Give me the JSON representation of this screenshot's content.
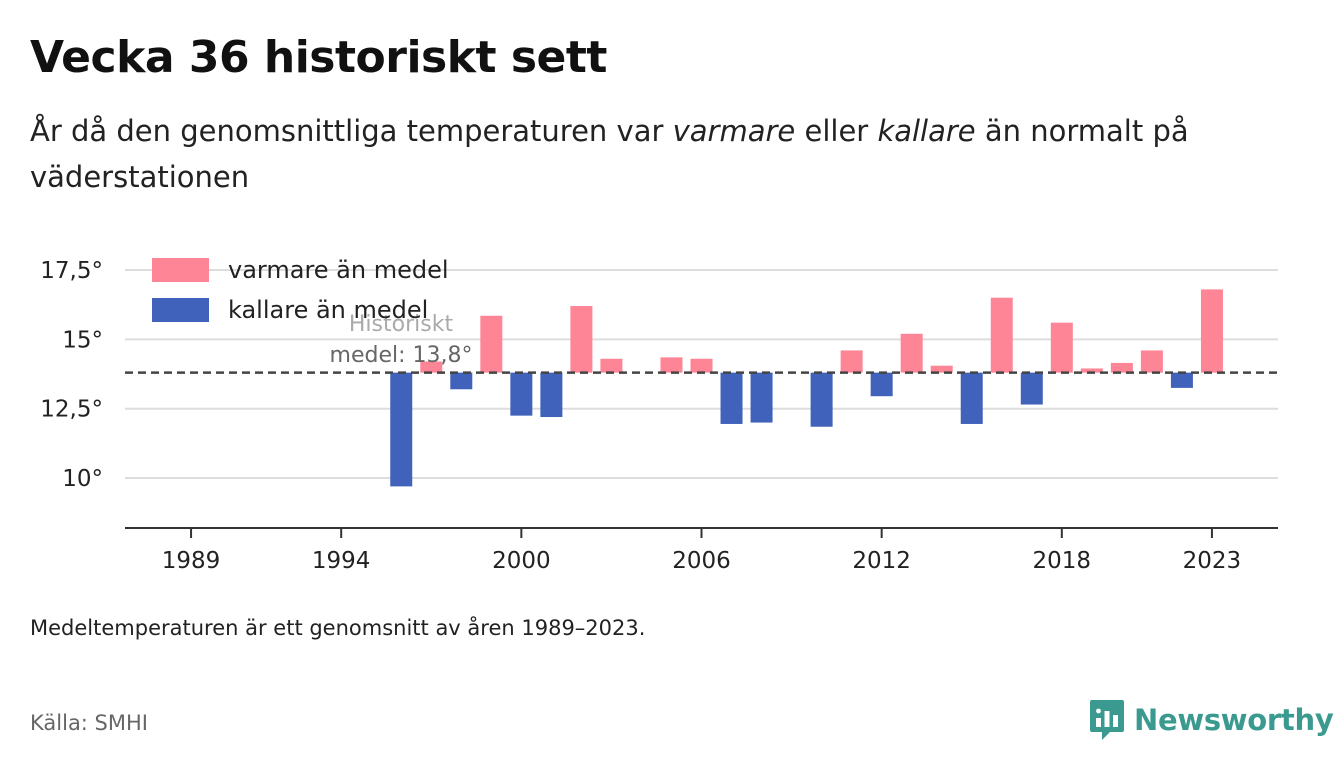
{
  "header": {
    "title": "Vecka 36 historiskt sett",
    "subtitle_pre": "År då den genomsnittliga temperaturen var ",
    "subtitle_warm": "varmare",
    "subtitle_mid": " eller ",
    "subtitle_cold": "kallare",
    "subtitle_post": " än normalt på väderstationen"
  },
  "footer": {
    "note": "Medeltemperaturen är ett genomsnitt av åren 1989–2023.",
    "source": "Källa: SMHI",
    "brand": "Newsworthy"
  },
  "icons": {
    "brand_logo": "newsworthy-logo-icon"
  },
  "chart_data": {
    "type": "bar",
    "baseline": 13.8,
    "baseline_label_line1": "Historiskt",
    "baseline_label_line2": "medel: 13,8°",
    "xlim": [
      1986.8,
      2025.2
    ],
    "ylim": [
      8.2,
      18.4
    ],
    "x_ticks": [
      1989,
      1994,
      2000,
      2006,
      2012,
      2018,
      2023
    ],
    "y_ticks": [
      10,
      12.5,
      15,
      17.5
    ],
    "y_tick_labels": [
      "10°",
      "12,5°",
      "15°",
      "17,5°"
    ],
    "grid": true,
    "legend_position": "top-left",
    "colors": {
      "warm": "#fd8596",
      "cold": "#4062bb",
      "grid": "#dddddd",
      "axis": "#333333",
      "baseline": "#444444"
    },
    "series": [
      {
        "name": "varmare än medel",
        "key": "warm"
      },
      {
        "name": "kallare än medel",
        "key": "cold"
      }
    ],
    "x": [
      1996,
      1997,
      1998,
      1999,
      2000,
      2001,
      2002,
      2003,
      2005,
      2006,
      2007,
      2008,
      2010,
      2011,
      2012,
      2013,
      2014,
      2015,
      2016,
      2017,
      2018,
      2019,
      2020,
      2021,
      2022,
      2023
    ],
    "values": [
      9.7,
      14.2,
      13.2,
      15.85,
      12.25,
      12.2,
      16.2,
      14.3,
      14.35,
      14.3,
      11.95,
      12.0,
      11.85,
      14.6,
      12.95,
      15.2,
      14.05,
      11.95,
      16.5,
      12.65,
      15.6,
      13.95,
      14.15,
      14.6,
      13.25,
      16.8
    ]
  }
}
